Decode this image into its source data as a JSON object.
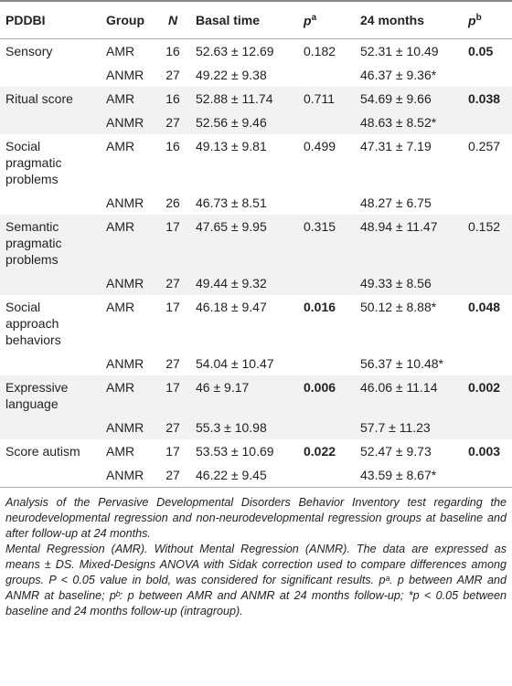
{
  "table": {
    "header": [
      "PDDBI",
      "Group",
      "N",
      "Basal time",
      {
        "text": "p",
        "sup": "a"
      },
      "24 months",
      {
        "text": "p",
        "sup": "b"
      }
    ],
    "rows": [
      [
        "Sensory",
        "AMR",
        "16",
        "52.63 ± 12.69",
        "0.182",
        "52.31 ± 10.49",
        "0.05"
      ],
      [
        null,
        "ANMR",
        "27",
        "49.22 ± 9.38",
        null,
        "46.37 ± 9.36*",
        null
      ],
      [
        "Ritual score",
        "AMR",
        "16",
        "52.88 ± 11.74",
        "0.711",
        "54.69 ± 9.66",
        "0.038"
      ],
      [
        null,
        "ANMR",
        "27",
        "52.56 ± 9.46",
        null,
        "48.63 ± 8.52*",
        null
      ],
      [
        "Social pragmatic problems",
        "AMR",
        "16",
        "49.13 ± 9.81",
        "0.499",
        "47.31 ± 7.19",
        "0.257"
      ],
      [
        null,
        "ANMR",
        "26",
        "46.73 ± 8.51",
        null,
        "48.27 ± 6.75",
        null
      ],
      [
        "Semantic pragmatic problems",
        "AMR",
        "17",
        "47.65 ± 9.95",
        "0.315",
        "48.94 ± 11.47",
        "0.152"
      ],
      [
        null,
        "ANMR",
        "27",
        "49.44 ± 9.32",
        null,
        "49.33 ± 8.56",
        null
      ],
      [
        "Social approach behaviors",
        "AMR",
        "17",
        "46.18 ± 9.47",
        "0.016",
        "50.12 ± 8.88*",
        "0.048"
      ],
      [
        null,
        "ANMR",
        "27",
        "54.04 ± 10.47",
        null,
        "56.37 ± 10.48*",
        null
      ],
      [
        "Expressive language",
        "AMR",
        "17",
        "46 ± 9.17",
        "0.006",
        "46.06 ± 11.14",
        "0.002"
      ],
      [
        null,
        "ANMR",
        "27",
        "55.3 ± 10.98",
        null,
        "57.7 ± 11.23",
        null
      ],
      [
        "Score autism",
        "AMR",
        "17",
        "53.53 ± 10.69",
        "0.022",
        "52.47 ± 9.73",
        "0.003"
      ],
      [
        null,
        "ANMR",
        "27",
        "46.22 ± 9.45",
        null,
        "43.59 ± 8.67*",
        null
      ]
    ],
    "bold": [
      [
        0,
        6
      ],
      [
        2,
        6
      ],
      [
        8,
        4
      ],
      [
        8,
        6
      ],
      [
        10,
        4
      ],
      [
        10,
        6
      ],
      [
        12,
        4
      ],
      [
        12,
        6
      ]
    ]
  },
  "notes": [
    "Analysis of the Pervasive Developmental Disorders Behavior Inventory test regarding the neurodevelopmental regression and non-neurodevelopmental regression groups at baseline and after follow-up at 24 months.",
    "Mental Regression (AMR). Without Mental Regression (ANMR). The data are expressed as means ± DS. Mixed-Designs ANOVA with Sidak correction used to compare differences among groups. P < 0.05 value in bold, was considered for significant results. pᵃ. p between AMR and ANMR at baseline; pᵇ: p between AMR and ANMR at 24 months follow-up; *p < 0.05 between baseline and 24 months follow-up (intragroup)."
  ]
}
